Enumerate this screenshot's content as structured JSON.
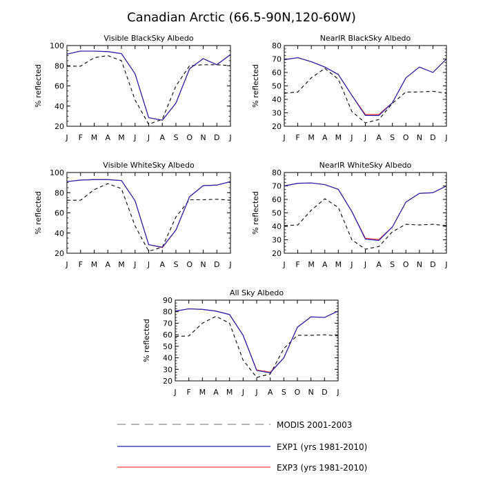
{
  "title": "Canadian Arctic (66.5-90N,120-60W)",
  "legend": [
    {
      "label": "MODIS 2001-2003",
      "color": "#000000",
      "dash": true
    },
    {
      "label": "EXP1 (yrs 1981-2010)",
      "color": "#1f1fb4",
      "dash": false
    },
    {
      "label": "EXP3 (yrs 1981-2010)",
      "color": "#ff3b3b",
      "dash": false
    }
  ],
  "chart_data": [
    {
      "type": "line",
      "title": "Visible BlackSky Albedo",
      "ylabel": "% reflected",
      "categories": [
        "J",
        "F",
        "M",
        "A",
        "M",
        "J",
        "J",
        "A",
        "S",
        "O",
        "N",
        "D",
        "J"
      ],
      "ylim": [
        20,
        100
      ],
      "yticks": [
        20,
        40,
        60,
        80,
        100
      ],
      "series": [
        {
          "name": "MODIS 2001-2003",
          "values": [
            79.5,
            79.5,
            88,
            90,
            85,
            46,
            22,
            27,
            60,
            80,
            81,
            81,
            80
          ]
        },
        {
          "name": "EXP1 (yrs 1981-2010)",
          "values": [
            91.5,
            94.5,
            94.5,
            94,
            92,
            72,
            28.5,
            26,
            43,
            77,
            87,
            81,
            91
          ]
        },
        {
          "name": "EXP3 (yrs 1981-2010)",
          "values": [
            91.5,
            94.5,
            94.5,
            94,
            92,
            72,
            28.5,
            26,
            43,
            77,
            87,
            81,
            91
          ]
        }
      ]
    },
    {
      "type": "line",
      "title": "NearIR BlackSky Albedo",
      "ylabel": "% reflected",
      "categories": [
        "J",
        "F",
        "M",
        "A",
        "M",
        "J",
        "J",
        "A",
        "S",
        "O",
        "N",
        "D",
        "J"
      ],
      "ylim": [
        20,
        80
      ],
      "yticks": [
        20,
        30,
        40,
        50,
        60,
        70,
        80
      ],
      "series": [
        {
          "name": "MODIS 2001-2003",
          "values": [
            44.5,
            45.5,
            56,
            63,
            55,
            31,
            22.5,
            25,
            37,
            45.5,
            45.5,
            46,
            44.5
          ]
        },
        {
          "name": "EXP1 (yrs 1981-2010)",
          "values": [
            69.5,
            71,
            68,
            64,
            58.5,
            43,
            28,
            28,
            37.5,
            56,
            64,
            60,
            70
          ]
        },
        {
          "name": "EXP3 (yrs 1981-2010)",
          "values": [
            69.5,
            71,
            68,
            64,
            58.5,
            43,
            28.8,
            28.8,
            37.5,
            56,
            64,
            60,
            70
          ]
        }
      ]
    },
    {
      "type": "line",
      "title": "Visible WhiteSky Albedo",
      "ylabel": "% reflected",
      "categories": [
        "J",
        "F",
        "M",
        "A",
        "M",
        "J",
        "J",
        "A",
        "S",
        "O",
        "N",
        "D",
        "J"
      ],
      "ylim": [
        20,
        100
      ],
      "yticks": [
        20,
        40,
        60,
        80,
        100
      ],
      "series": [
        {
          "name": "MODIS 2001-2003",
          "values": [
            72.5,
            72.5,
            83,
            89,
            84,
            47,
            22,
            26,
            56,
            73,
            73,
            73.5,
            72.5
          ]
        },
        {
          "name": "EXP1 (yrs 1981-2010)",
          "values": [
            91,
            92.5,
            93,
            93,
            92,
            72,
            28.5,
            26,
            43,
            76,
            87,
            87.5,
            91
          ]
        },
        {
          "name": "EXP3 (yrs 1981-2010)",
          "values": [
            91,
            92.5,
            93,
            93,
            92,
            72,
            28.5,
            25.5,
            43,
            76,
            87,
            87.5,
            91
          ]
        }
      ]
    },
    {
      "type": "line",
      "title": "NearIR WhiteSky Albedo",
      "ylabel": "% reflected",
      "categories": [
        "J",
        "F",
        "M",
        "A",
        "M",
        "J",
        "J",
        "A",
        "S",
        "O",
        "N",
        "D",
        "J"
      ],
      "ylim": [
        20,
        80
      ],
      "yticks": [
        20,
        30,
        40,
        50,
        60,
        70,
        80
      ],
      "series": [
        {
          "name": "MODIS 2001-2003",
          "values": [
            40.5,
            41,
            52,
            60.5,
            54,
            30,
            23,
            25,
            36,
            41.5,
            41,
            41.5,
            40.5
          ]
        },
        {
          "name": "EXP1 (yrs 1981-2010)",
          "values": [
            70,
            72,
            72.2,
            71,
            67.5,
            51,
            30.5,
            29.5,
            39.5,
            58,
            64.5,
            65,
            70
          ]
        },
        {
          "name": "EXP3 (yrs 1981-2010)",
          "values": [
            70,
            72,
            72.2,
            71,
            67.5,
            51,
            31.2,
            30.2,
            39.5,
            58,
            64.5,
            65,
            70
          ]
        }
      ]
    },
    {
      "type": "line",
      "title": "All Sky Albedo",
      "ylabel": "% reflected",
      "categories": [
        "J",
        "F",
        "M",
        "A",
        "M",
        "J",
        "J",
        "A",
        "S",
        "O",
        "N",
        "D",
        "J"
      ],
      "ylim": [
        20,
        90
      ],
      "yticks": [
        20,
        30,
        40,
        50,
        60,
        70,
        80,
        90
      ],
      "series": [
        {
          "name": "MODIS 2001-2003",
          "values": [
            58.5,
            59,
            70,
            76,
            70,
            38,
            23,
            26,
            48,
            59.5,
            59.5,
            60,
            59
          ]
        },
        {
          "name": "EXP1 (yrs 1981-2010)",
          "values": [
            80.5,
            82.5,
            82,
            80.5,
            77.5,
            59.5,
            29,
            27,
            40,
            66.5,
            75.5,
            75,
            80.5
          ]
        },
        {
          "name": "EXP3 (yrs 1981-2010)",
          "values": [
            80.5,
            82.5,
            82,
            80.5,
            77.5,
            59.5,
            29.5,
            27.5,
            40,
            66.5,
            75.5,
            75,
            80.5
          ]
        }
      ]
    }
  ]
}
